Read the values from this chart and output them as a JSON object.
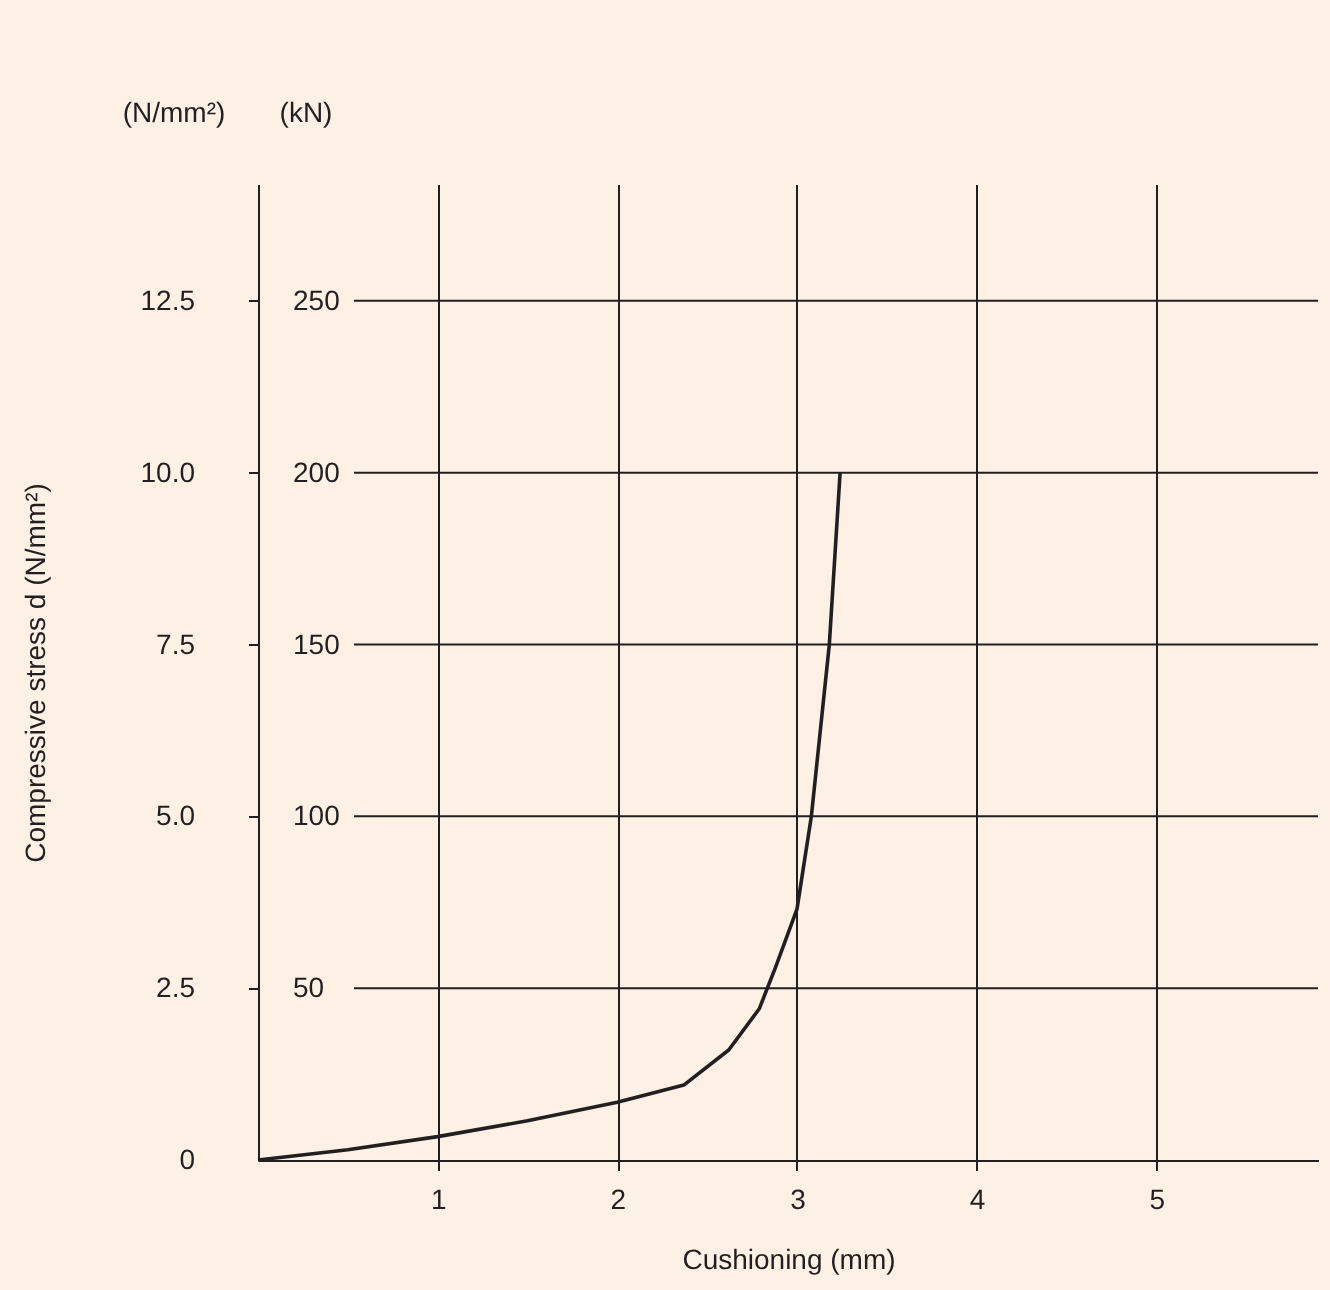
{
  "chart_data": {
    "type": "line",
    "xlabel": "Cushioning (mm)",
    "ylabel": "Compressive stress d (N/mm²)",
    "annotations": [
      "(N/mm²)",
      "(kN)"
    ],
    "x": [
      0,
      0.5,
      1,
      1.5,
      2,
      2.37,
      2.62,
      2.79,
      2.88,
      3.0,
      3.08,
      3.18,
      3.24
    ],
    "series": [
      {
        "color": "#231f20",
        "values": [
          0,
          0.15,
          0.34,
          0.57,
          0.84,
          1.09,
          1.6,
          2.2,
          2.8,
          3.65,
          5.0,
          7.5,
          10.0
        ]
      }
    ],
    "xlim": [
      0,
      5.9
    ],
    "xticks": [
      1,
      2,
      3,
      4,
      5
    ],
    "ylim": [
      0,
      14.2
    ],
    "yticks": [
      0,
      {
        "value": 2.5,
        "label": "2.5"
      },
      {
        "value": 5,
        "label": "5.0"
      },
      {
        "value": 7.5,
        "label": "7.5"
      },
      {
        "value": 10,
        "label": "10.0"
      },
      {
        "value": 12.5,
        "label": "12.5"
      }
    ],
    "y2lim": [
      0,
      284
    ],
    "y2ticks": [
      50,
      100,
      150,
      200,
      250
    ],
    "grid": true,
    "marker": "none",
    "line_style": "solid"
  }
}
